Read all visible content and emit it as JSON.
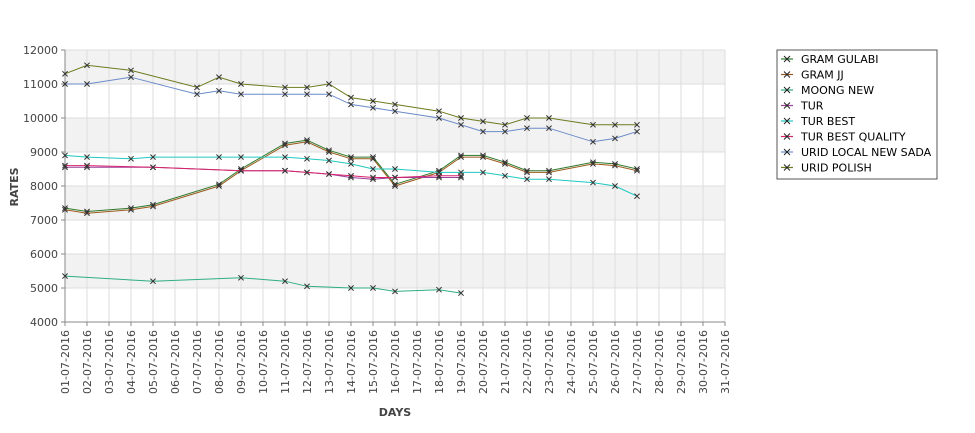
{
  "chart_data": {
    "type": "line",
    "title": "",
    "xlabel": "DAYS",
    "ylabel": "RATES",
    "ylim": [
      4000,
      12000
    ],
    "yticks": [
      4000,
      5000,
      6000,
      7000,
      8000,
      9000,
      10000,
      11000,
      12000
    ],
    "categories": [
      "01-07-2016",
      "02-07-2016",
      "03-07-2016",
      "04-07-2016",
      "05-07-2016",
      "06-07-2016",
      "07-07-2016",
      "08-07-2016",
      "09-07-2016",
      "10-07-2016",
      "11-07-2016",
      "12-07-2016",
      "13-07-2016",
      "14-07-2016",
      "15-07-2016",
      "16-07-2016",
      "17-07-2016",
      "18-07-2016",
      "19-07-2016",
      "20-07-2016",
      "21-07-2016",
      "22-07-2016",
      "23-07-2016",
      "24-07-2016",
      "25-07-2016",
      "26-07-2016",
      "27-07-2016",
      "28-07-2016",
      "29-07-2016",
      "30-07-2016",
      "31-07-2016"
    ],
    "grid": true,
    "legend_position": "right",
    "series": [
      {
        "name": "GRAM GULABI",
        "color": "#2d7a2d",
        "values": [
          7350,
          7250,
          null,
          7350,
          7450,
          null,
          null,
          8050,
          8500,
          null,
          9250,
          9350,
          9050,
          8850,
          8850,
          8050,
          null,
          8450,
          8900,
          8900,
          8700,
          8450,
          8450,
          null,
          8700,
          8650,
          8500,
          null,
          null,
          null,
          null
        ]
      },
      {
        "name": "GRAM JJ",
        "color": "#9c5a1c",
        "values": [
          7300,
          7200,
          null,
          7300,
          7400,
          null,
          null,
          8000,
          8450,
          null,
          9200,
          9300,
          9000,
          8800,
          8800,
          8000,
          null,
          8400,
          8850,
          8850,
          8650,
          8400,
          8400,
          null,
          8650,
          8600,
          8450,
          null,
          null,
          null,
          null
        ]
      },
      {
        "name": "MOONG NEW",
        "color": "#2fae83",
        "values": [
          5350,
          null,
          null,
          null,
          5200,
          null,
          null,
          null,
          5300,
          null,
          5200,
          5050,
          null,
          5000,
          5000,
          4900,
          null,
          4950,
          4850,
          null,
          null,
          null,
          null,
          null,
          null,
          null,
          null,
          null,
          null,
          null,
          null
        ]
      },
      {
        "name": "TUR",
        "color": "#9b3f9b",
        "values": [
          8550,
          8550,
          null,
          null,
          8550,
          null,
          null,
          null,
          8450,
          null,
          8450,
          8400,
          8350,
          8250,
          8200,
          8250,
          null,
          8250,
          8250,
          null,
          null,
          null,
          null,
          null,
          null,
          null,
          null,
          null,
          null,
          null,
          null
        ]
      },
      {
        "name": "TUR BEST",
        "color": "#1fc8c0",
        "values": [
          8900,
          8850,
          null,
          8800,
          8850,
          null,
          null,
          8850,
          8850,
          null,
          8850,
          8800,
          8750,
          8650,
          8500,
          8500,
          null,
          8400,
          8400,
          8400,
          8300,
          8200,
          8200,
          null,
          8100,
          8000,
          7700,
          null,
          null,
          null,
          null
        ]
      },
      {
        "name": "TUR BEST QUALITY",
        "color": "#d6246a",
        "values": [
          8600,
          8600,
          null,
          null,
          8550,
          null,
          null,
          null,
          8450,
          null,
          8450,
          8400,
          8350,
          8300,
          8250,
          8250,
          null,
          8300,
          8300,
          null,
          null,
          null,
          null,
          null,
          null,
          null,
          null,
          null,
          null,
          null,
          null
        ]
      },
      {
        "name": "URID LOCAL NEW SADA",
        "color": "#6a8ac8",
        "values": [
          11000,
          11000,
          null,
          11200,
          null,
          null,
          10700,
          10800,
          10700,
          null,
          10700,
          10700,
          10700,
          10400,
          10300,
          10200,
          null,
          10000,
          9800,
          9600,
          9600,
          9700,
          9700,
          null,
          9300,
          9400,
          9600,
          null,
          null,
          null,
          null
        ]
      },
      {
        "name": "URID POLISH",
        "color": "#6e7a1e",
        "values": [
          11300,
          11550,
          null,
          11400,
          null,
          null,
          10900,
          11200,
          11000,
          null,
          10900,
          10900,
          11000,
          10600,
          10500,
          10400,
          null,
          10200,
          10000,
          9900,
          9800,
          10000,
          10000,
          null,
          9800,
          9800,
          9800,
          null,
          null,
          null,
          null
        ]
      }
    ]
  }
}
